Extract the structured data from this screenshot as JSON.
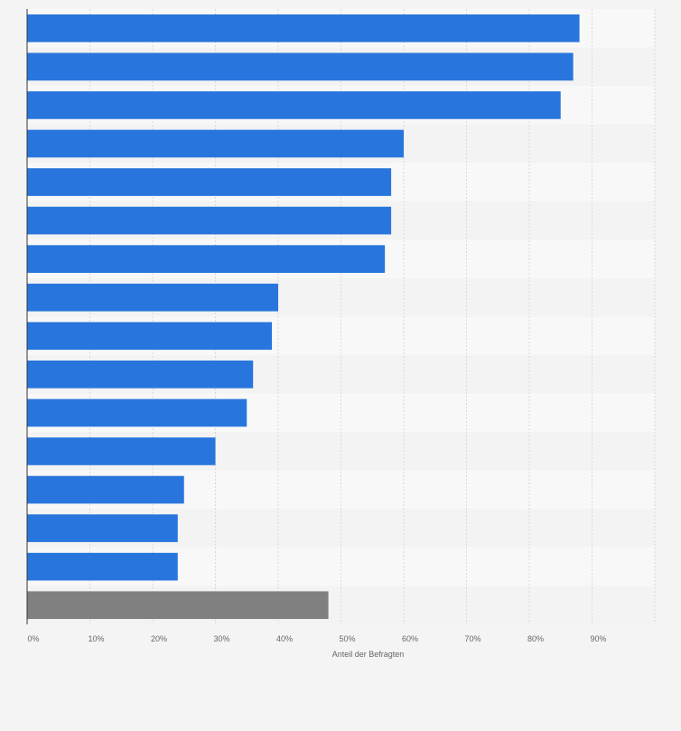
{
  "chart_data": {
    "type": "bar",
    "orientation": "horizontal",
    "title": "",
    "xlabel": "Anteil der Befragten",
    "ylabel": "",
    "xlim": [
      0,
      100
    ],
    "x_ticks": [
      "0%",
      "10%",
      "20%",
      "30%",
      "40%",
      "50%",
      "60%",
      "70%",
      "80%",
      "90%"
    ],
    "grid": true,
    "legend": "none",
    "categories": [
      "",
      "",
      "",
      "",
      "",
      "",
      "",
      "",
      "",
      "",
      "",
      "",
      "",
      "",
      "",
      ""
    ],
    "values": [
      88,
      87,
      85,
      60,
      58,
      58,
      57,
      40,
      39,
      36,
      35,
      30,
      25,
      24,
      24,
      48
    ],
    "unit": "%",
    "colors": {
      "bar": "#2876dd",
      "highlight": "#808080",
      "band_light": "#f8f8f8",
      "band_dark": "#f3f3f3",
      "grid": "#d9d9d9",
      "axis": "#333333"
    },
    "highlight_index": 15
  }
}
